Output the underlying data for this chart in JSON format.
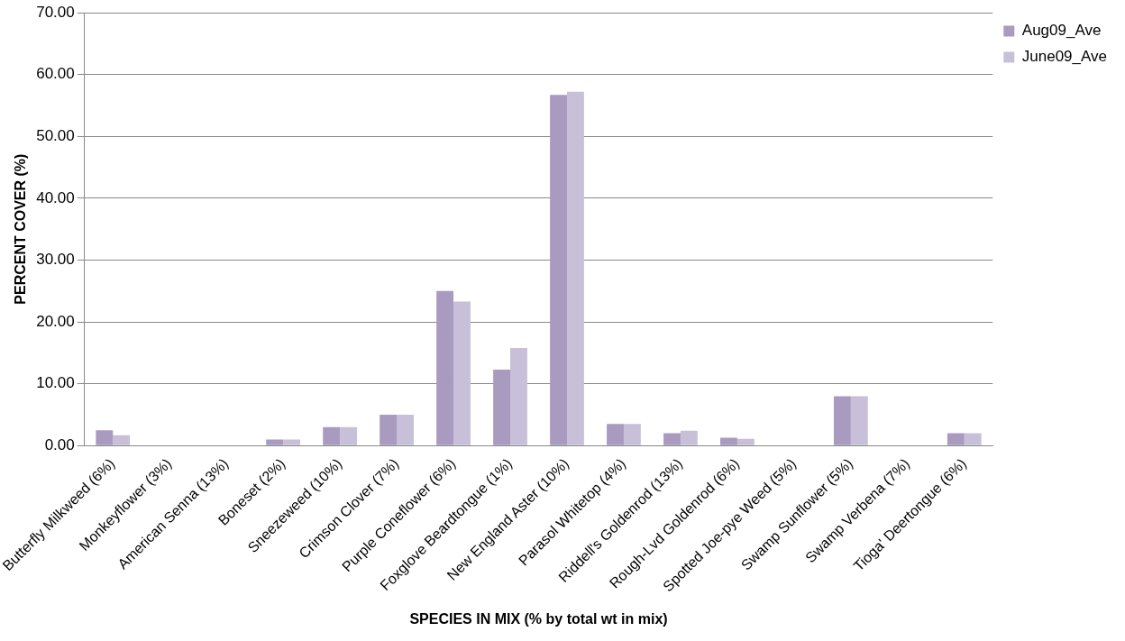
{
  "chart_data": {
    "type": "bar",
    "xlabel": "SPECIES IN MIX (% by total wt in mix)",
    "ylabel": "PERCENT COVER (%)",
    "categories": [
      "Butterfly Milkweed (6%)",
      "Monkeyflower (3%)",
      "American Senna (13%)",
      "Boneset (2%)",
      "Sneezeweed (10%)",
      "Crimson Clover (7%)",
      "Purple Coneflower (6%)",
      "Foxglove Beardtongue (1%)",
      "New England Aster (10%)",
      "Parasol Whitetop (4%)",
      "Riddell's Goldenrod (13%)",
      "Rough-Lvd Goldenrod (6%)",
      "Spotted Joe-pye Weed (5%)",
      "Swamp Sunflower (5%)",
      "Swamp Verbena (7%)",
      "Tioga' Deertongue (6%)"
    ],
    "series": [
      {
        "name": "Aug09_Ave",
        "color": "#a99bc0",
        "values": [
          2.5,
          0,
          0,
          1.0,
          3.0,
          5.0,
          25.0,
          12.3,
          56.7,
          3.5,
          2.0,
          1.3,
          0,
          8.0,
          0,
          2.0
        ]
      },
      {
        "name": "June09_Ave",
        "color": "#c8c0d8",
        "values": [
          1.7,
          0,
          0,
          1.0,
          3.0,
          5.0,
          23.3,
          15.8,
          57.2,
          3.5,
          2.4,
          1.1,
          0,
          8.0,
          0,
          2.0
        ]
      }
    ],
    "ylim": [
      0,
      70
    ],
    "yticks": [
      {
        "value": 0,
        "label": "0.00"
      },
      {
        "value": 10,
        "label": "10.00"
      },
      {
        "value": 20,
        "label": "20.00"
      },
      {
        "value": 30,
        "label": "30.00"
      },
      {
        "value": 40,
        "label": "40.00"
      },
      {
        "value": 50,
        "label": "50.00"
      },
      {
        "value": 60,
        "label": "60.00"
      },
      {
        "value": 70,
        "label": "70.00"
      }
    ],
    "grid": "y",
    "legend": "right"
  }
}
